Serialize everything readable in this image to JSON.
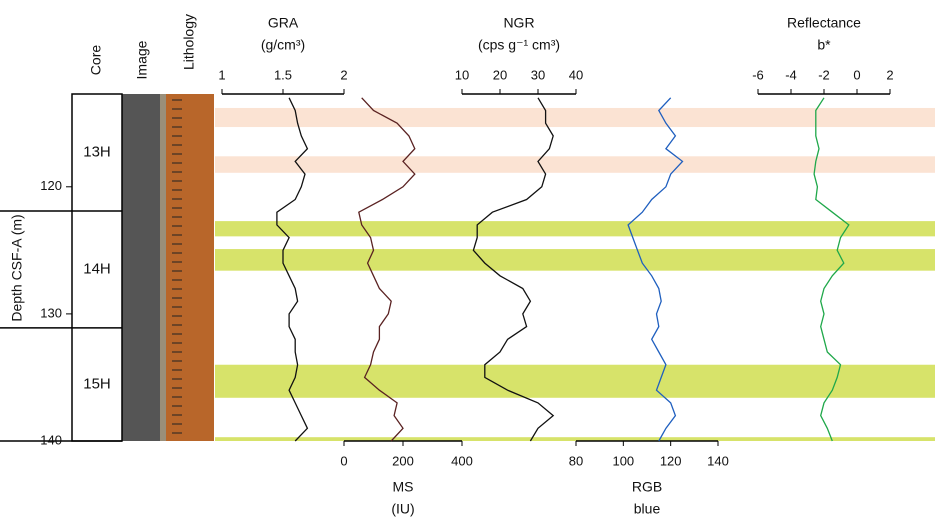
{
  "chart_data": {
    "type": "well-log",
    "ylabel": "Depth CSF-A (m)",
    "ylim": [
      112.7,
      140
    ],
    "yticks": [
      120,
      130,
      140
    ],
    "column_headers": [
      "Core",
      "Image",
      "Lithology"
    ],
    "cores": [
      {
        "name": "13H",
        "top": 112.7,
        "bottom": 121.9
      },
      {
        "name": "14H",
        "top": 121.9,
        "bottom": 131.1
      },
      {
        "name": "15H",
        "top": 131.1,
        "bottom": 140
      }
    ],
    "bands": [
      {
        "from": 113.8,
        "to": 115.3,
        "color": "#fbe3d3"
      },
      {
        "from": 117.6,
        "to": 118.9,
        "color": "#fbe3d3"
      },
      {
        "from": 122.7,
        "to": 123.9,
        "color": "#d7e36a"
      },
      {
        "from": 124.9,
        "to": 126.6,
        "color": "#d7e36a"
      },
      {
        "from": 134.0,
        "to": 136.6,
        "color": "#d7e36a"
      },
      {
        "from": 139.7,
        "to": 140,
        "color": "#d7e36a"
      }
    ],
    "depth": [
      113,
      114,
      115,
      116,
      117,
      118,
      119,
      120,
      121,
      122,
      123,
      124,
      125,
      126,
      127,
      128,
      129,
      130,
      131,
      132,
      133,
      134,
      135,
      136,
      137,
      138,
      139,
      140
    ],
    "panels": [
      {
        "name": "GRA",
        "units": "(g/cm³)",
        "axis_side": "top",
        "color": "#111111",
        "xlim": [
          1,
          2
        ],
        "xticks": [
          1,
          1.5,
          2
        ],
        "values": [
          1.55,
          1.6,
          1.62,
          1.65,
          1.7,
          1.6,
          1.68,
          1.65,
          1.6,
          1.45,
          1.45,
          1.55,
          1.5,
          1.5,
          1.55,
          1.6,
          1.62,
          1.55,
          1.55,
          1.6,
          1.6,
          1.62,
          1.6,
          1.55,
          1.6,
          1.65,
          1.7,
          1.6
        ]
      },
      {
        "name": "MS",
        "units": "(IU)",
        "axis_side": "bottom",
        "color": "#5a2222",
        "xlim": [
          0,
          400
        ],
        "xticks": [
          0,
          200,
          400
        ],
        "values": [
          60,
          100,
          180,
          220,
          240,
          200,
          240,
          200,
          130,
          50,
          60,
          90,
          100,
          80,
          100,
          120,
          160,
          150,
          120,
          120,
          100,
          90,
          70,
          120,
          180,
          170,
          200,
          160
        ]
      },
      {
        "name": "NGR",
        "units": "(cps g⁻¹ cm³)",
        "axis_side": "top",
        "color": "#111111",
        "xlim": [
          10,
          40
        ],
        "xticks": [
          10,
          20,
          30,
          40
        ],
        "values": [
          30,
          32,
          32,
          34,
          33,
          30,
          32,
          31,
          27,
          18,
          14,
          14,
          13,
          16,
          20,
          26,
          28,
          26,
          27,
          22,
          20,
          16,
          16,
          22,
          30,
          34,
          30,
          28
        ]
      },
      {
        "name": "RGB",
        "units": "blue",
        "axis_side": "bottom",
        "color": "#1f5fbf",
        "xlim": [
          80,
          140
        ],
        "xticks": [
          80,
          100,
          120,
          140
        ],
        "values": [
          120,
          115,
          118,
          122,
          118,
          125,
          120,
          118,
          112,
          108,
          102,
          104,
          106,
          108,
          112,
          115,
          116,
          114,
          115,
          112,
          115,
          118,
          116,
          114,
          120,
          122,
          118,
          115
        ]
      },
      {
        "name": "Reflectance",
        "units": "b*",
        "axis_side": "top",
        "color": "#1fa84a",
        "xlim": [
          -6,
          2
        ],
        "xticks": [
          -6,
          -4,
          -2,
          0,
          2
        ],
        "values": [
          -2,
          -2.5,
          -2.5,
          -2.5,
          -2.3,
          -2.5,
          -2.6,
          -2.4,
          -2.5,
          -1.5,
          -0.5,
          -1.0,
          -1.2,
          -0.8,
          -1.5,
          -2.0,
          -2.2,
          -2.0,
          -2.2,
          -2.0,
          -1.8,
          -1.0,
          -1.2,
          -1.5,
          -2.0,
          -2.2,
          -1.8,
          -1.5
        ]
      }
    ]
  }
}
